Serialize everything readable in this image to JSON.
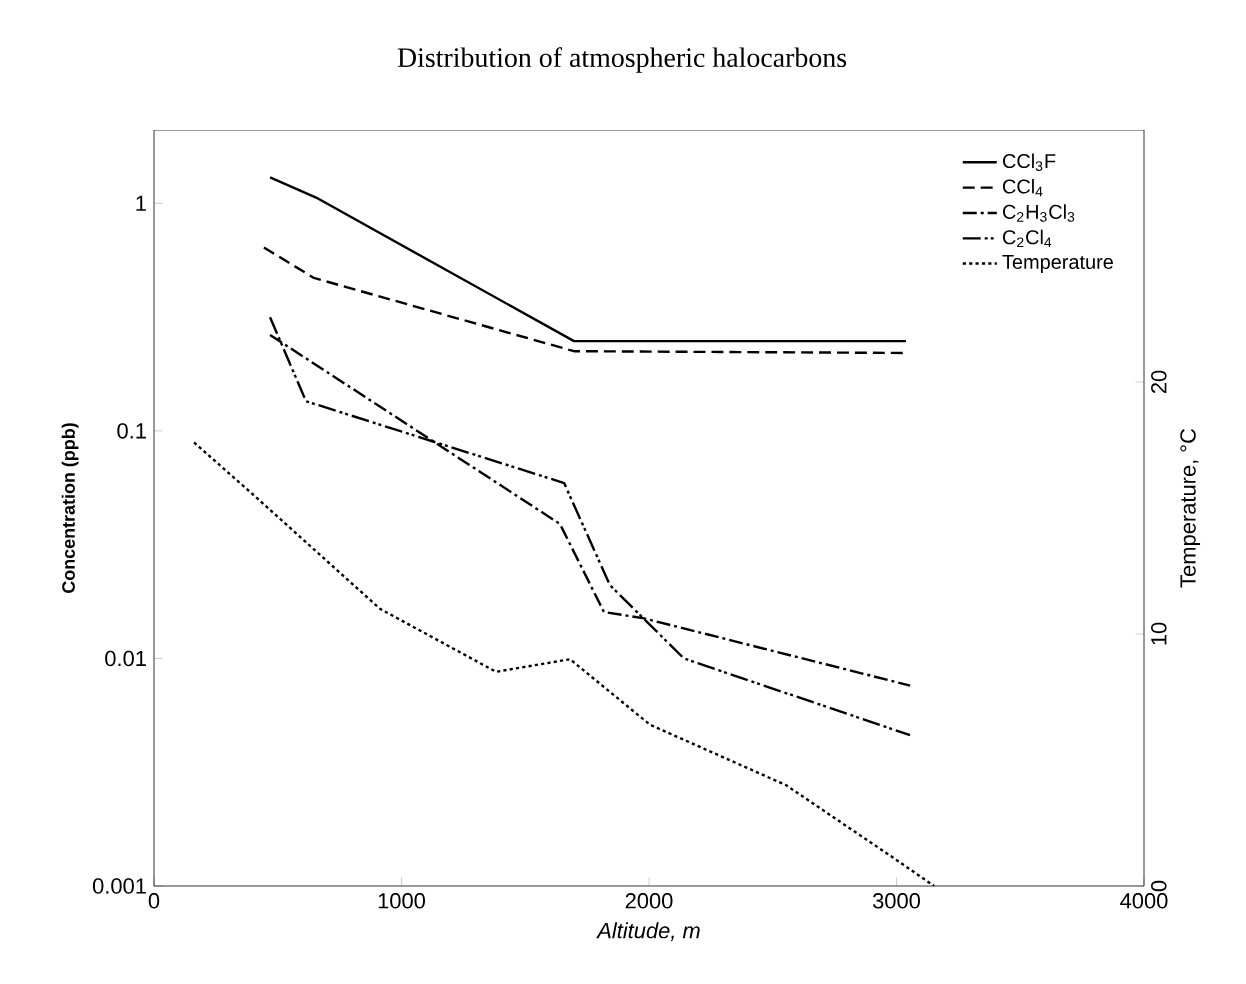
{
  "chart_data": {
    "type": "line",
    "title": "Distribution of atmospheric halocarbons",
    "xlabel": "Altitude, m",
    "ylabel": "Concentration (ppb)",
    "y2label": "Temperature, °C",
    "log": "y",
    "grid": false,
    "legend": "top right",
    "marker": "none",
    "xlim": [
      0,
      4000
    ],
    "xticks": [
      0,
      1000,
      2000,
      3000,
      4000
    ],
    "ylim": [
      0.001,
      2.1
    ],
    "yticks": [
      1,
      0.1,
      0.01,
      0.001
    ],
    "y2lim": [
      0,
      30
    ],
    "y2ticks": [
      0,
      10,
      20
    ],
    "series": [
      {
        "name": "CCl$_{3}$F",
        "color": "#000000",
        "line_style": "solid",
        "x": [
          469,
          655,
          1697,
          3038
        ],
        "values": [
          1.3,
          1.06,
          0.248,
          0.248
        ]
      },
      {
        "name": "CCl$_{4}$",
        "color": "#000000",
        "line_style": "dashed",
        "x": [
          444,
          646,
          1697,
          3038
        ],
        "values": [
          0.64,
          0.47,
          0.224,
          0.22
        ]
      },
      {
        "name": "C$_{2}$H$_{3}$Cl$_{3}$",
        "color": "#000000",
        "line_style": "dashdot",
        "x": [
          469,
          1640,
          1818,
          1980,
          3055
        ],
        "values": [
          0.264,
          0.039,
          0.016,
          0.015,
          0.0076
        ]
      },
      {
        "name": "C$_{2}$Cl$_{4}$",
        "color": "#000000",
        "line_style": "dashdotdot",
        "x": [
          469,
          614,
          1657,
          1842,
          2141,
          3055
        ],
        "values": [
          0.316,
          0.135,
          0.059,
          0.021,
          0.01,
          0.0046
        ]
      },
      {
        "name": "Temperature",
        "color": "#000000",
        "line_style": "dotted",
        "axis": "y2",
        "x": [
          162,
          404,
          913,
          1382,
          1681,
          2004,
          2554,
          2990,
          3152
        ],
        "values": [
          17.6,
          15.5,
          11.0,
          8.5,
          9.0,
          6.4,
          4.0,
          1.1,
          0
        ]
      }
    ]
  }
}
